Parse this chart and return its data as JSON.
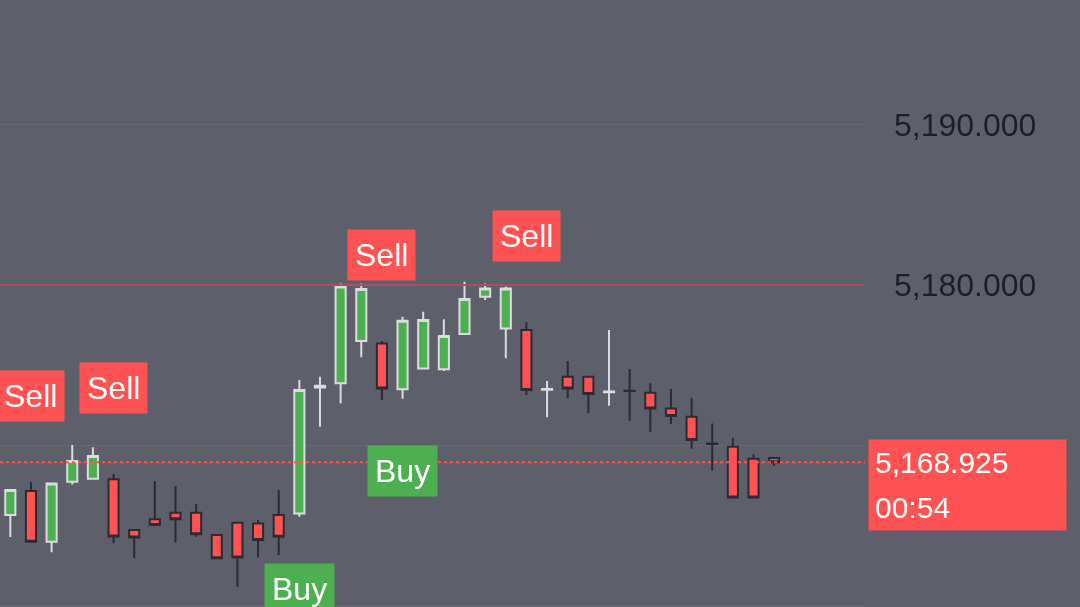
{
  "chart_data": {
    "type": "candlestick",
    "categories": [
      null,
      null,
      null,
      null,
      null,
      null,
      null,
      null,
      null,
      null,
      null,
      null,
      null,
      null,
      null,
      null,
      null,
      null,
      null,
      null,
      null,
      null,
      null,
      null,
      null,
      null,
      null,
      null,
      null,
      null,
      null,
      null,
      null,
      null,
      null,
      null,
      null,
      null
    ],
    "ohlc": [
      [
        5165.63,
        5167.19,
        5164.25,
        5167.19
      ],
      [
        5167.13,
        5167.67,
        5163.96,
        5163.96
      ],
      [
        5163.96,
        5167.6,
        5163.3,
        5167.6
      ],
      [
        5167.71,
        5170.0,
        5167.54,
        5169.0
      ],
      [
        5167.9,
        5169.86,
        5167.9,
        5169.31
      ],
      [
        5167.86,
        5168.19,
        5163.86,
        5164.29
      ],
      [
        5164.69,
        5164.69,
        5162.92,
        5164.23
      ],
      [
        5165.36,
        5167.75,
        5165.0,
        5165.0
      ],
      [
        5165.77,
        5167.44,
        5163.91,
        5165.37
      ],
      [
        5165.77,
        5166.31,
        5164.27,
        5164.42
      ],
      [
        5164.38,
        5164.38,
        5162.92,
        5162.92
      ],
      [
        5165.14,
        5165.2,
        5161.14,
        5162.97
      ],
      [
        5165.1,
        5165.31,
        5162.98,
        5164.06
      ],
      [
        5165.63,
        5167.19,
        5163.13,
        5164.27
      ],
      [
        5165.73,
        5174.06,
        5165.52,
        5173.44
      ],
      [
        5173.6,
        5174.27,
        5171.14,
        5173.7
      ],
      [
        5173.86,
        5180.1,
        5172.6,
        5179.9
      ],
      [
        5176.5,
        5180.1,
        5175.48,
        5179.75
      ],
      [
        5176.35,
        5176.5,
        5172.81,
        5173.54
      ],
      [
        5173.48,
        5178.02,
        5172.9,
        5177.77
      ],
      [
        5174.79,
        5178.33,
        5174.79,
        5177.81
      ],
      [
        5174.73,
        5177.86,
        5174.63,
        5176.81
      ],
      [
        5176.94,
        5180.2,
        5176.94,
        5179.13
      ],
      [
        5179.27,
        5180.1,
        5179.06,
        5179.79
      ],
      [
        5177.29,
        5179.9,
        5175.42,
        5179.79
      ],
      [
        5177.19,
        5177.67,
        5173.13,
        5173.44
      ],
      [
        5173.45,
        5174.0,
        5171.73,
        5173.5
      ],
      [
        5174.27,
        5175.25,
        5172.92,
        5173.54
      ],
      [
        5174.27,
        5174.27,
        5171.98,
        5173.19
      ],
      [
        5173.3,
        5177.19,
        5172.46,
        5173.35
      ],
      [
        5173.4,
        5174.75,
        5171.52,
        5173.38
      ],
      [
        5173.27,
        5173.86,
        5170.83,
        5172.29
      ],
      [
        5172.29,
        5173.5,
        5171.31,
        5171.81
      ],
      [
        5171.77,
        5172.96,
        5169.77,
        5170.31
      ],
      [
        5170.1,
        5171.35,
        5168.39,
        5170.06
      ],
      [
        5169.9,
        5170.46,
        5166.73,
        5166.73
      ],
      [
        5169.15,
        5169.44,
        5166.73,
        5166.73
      ],
      [
        5169.19,
        5169.19,
        5168.71,
        5168.925
      ]
    ],
    "colors": [
      "#4caf50",
      "#ff5252",
      "#4caf50",
      "#4caf50",
      "#4caf50",
      "#ff5252",
      "#ff5252",
      "#ff5252",
      "#ff5252",
      "#ff5252",
      "#ff5252",
      "#ff5252",
      "#ff5252",
      "#ff5252",
      "#4caf50",
      "#dcdce0",
      "#4caf50",
      "#4caf50",
      "#ff5252",
      "#4caf50",
      "#4caf50",
      "#4caf50",
      "#4caf50",
      "#4caf50",
      "#4caf50",
      "#ff5252",
      "#dcdce0",
      "#ff5252",
      "#ff5252",
      "#dcdce0",
      "#2a2b33",
      "#ff5252",
      "#ff5252",
      "#ff5252",
      "#2a2b33",
      "#ff5252",
      "#ff5252",
      "#ff5252"
    ],
    "ylim": [
      5159.88,
      5197.81
    ],
    "yticks": [
      {
        "value": 5160,
        "label": null
      },
      {
        "value": 5170,
        "label": null
      },
      {
        "value": 5180,
        "label": "5,180.000"
      },
      {
        "value": 5190,
        "label": "5,190.000"
      }
    ],
    "tick_labels": "y",
    "grid": "y",
    "legend": false,
    "ref_lines": [
      {
        "axis": "y",
        "value": 5180,
        "color": "#a8505c",
        "line_style": "solid"
      },
      {
        "axis": "y",
        "value": 5168.925,
        "label": "5,168.925",
        "color": "#ff5252",
        "line_style": "dotted"
      }
    ],
    "annotations": [
      {
        "text": "Sell",
        "y": 5167.67
      },
      {
        "text": "Sell",
        "y": 5168.19
      },
      {
        "text": "Sell",
        "y": 5176.5
      },
      {
        "text": "Sell",
        "y": 5177.67
      },
      {
        "text": "Buy",
        "y": 5172.9
      },
      {
        "text": "Buy",
        "y": 5165.52
      },
      "00:54"
    ]
  }
}
